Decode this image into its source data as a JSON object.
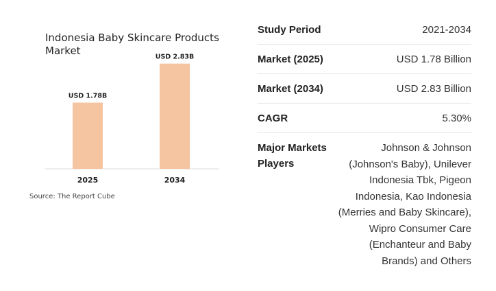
{
  "chart_data": {
    "type": "bar",
    "title": "Indonesia Baby Skincare Products Market",
    "categories": [
      "2025",
      "2034"
    ],
    "values": [
      1.78,
      2.83
    ],
    "data_labels": [
      "USD 1.78B",
      "USD 2.83B"
    ],
    "xlabel": "",
    "ylabel": "",
    "ylim": [
      0,
      3.1
    ],
    "grid": false,
    "legend": "none",
    "bar_color": "#f5c5a2",
    "source": "Source: The Report Cube"
  },
  "facts": {
    "study_period": {
      "label": "Study Period",
      "value": "2021-2034"
    },
    "market_2025": {
      "label": "Market (2025)",
      "value": "USD 1.78 Billion"
    },
    "market_2034": {
      "label": "Market (2034)",
      "value": "USD 2.83 Billion"
    },
    "cagr": {
      "label": "CAGR",
      "value": "5.30%"
    },
    "players": {
      "label": "Major Markets Players",
      "value": "Johnson & Johnson (Johnson's Baby), Unilever Indonesia Tbk, Pigeon Indonesia, Kao Indonesia (Merries and Baby Skincare), Wipro Consumer Care (Enchanteur and Baby Brands) and Others"
    }
  }
}
